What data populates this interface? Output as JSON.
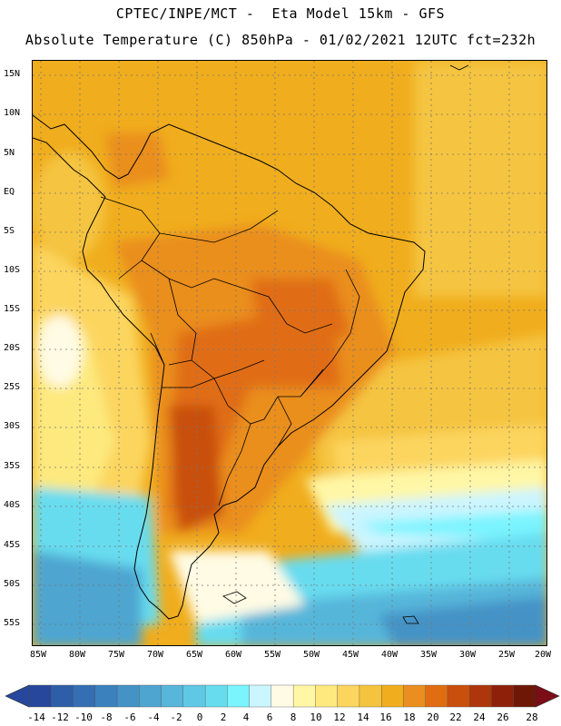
{
  "header": {
    "line1": "CPTEC/INPE/MCT -  Eta Model 15km - GFS",
    "line2": "Absolute Temperature (C) 850hPa - 01/02/2021 12UTC fct=232h"
  },
  "map": {
    "variable": "Absolute Temperature (C) 850hPa",
    "lat_labels": [
      "15N",
      "10N",
      "5N",
      "EQ",
      "5S",
      "10S",
      "15S",
      "20S",
      "25S",
      "30S",
      "35S",
      "40S",
      "45S",
      "50S",
      "55S"
    ],
    "lon_labels": [
      "85W",
      "80W",
      "75W",
      "70W",
      "65W",
      "60W",
      "55W",
      "50W",
      "45W",
      "40W",
      "35W",
      "30W",
      "25W",
      "20W"
    ],
    "lat_range": [
      16.5,
      -58
    ],
    "lon_range": [
      -85.5,
      -20.5
    ]
  },
  "colorbar": {
    "labels": [
      "-14",
      "-12",
      "-10",
      "-8",
      "-6",
      "-4",
      "-2",
      "0",
      "2",
      "4",
      "6",
      "8",
      "10",
      "12",
      "14",
      "16",
      "18",
      "20",
      "22",
      "24",
      "26",
      "28"
    ],
    "colors": [
      "#26479b",
      "#2e5ea8",
      "#356fb3",
      "#3b81bd",
      "#4593c6",
      "#4ea5d0",
      "#57b6da",
      "#5fc9e5",
      "#68dcef",
      "#7af4ff",
      "#cbf5ff",
      "#fffbe4",
      "#fff7a6",
      "#fde97e",
      "#fcd55e",
      "#f5c43f",
      "#f0ad1d",
      "#ea8e1f",
      "#e06d12",
      "#c94f0d",
      "#ae360b",
      "#8e2009",
      "#6f1707"
    ],
    "min_color": "#26479b",
    "max_color": "#7a0d17"
  }
}
